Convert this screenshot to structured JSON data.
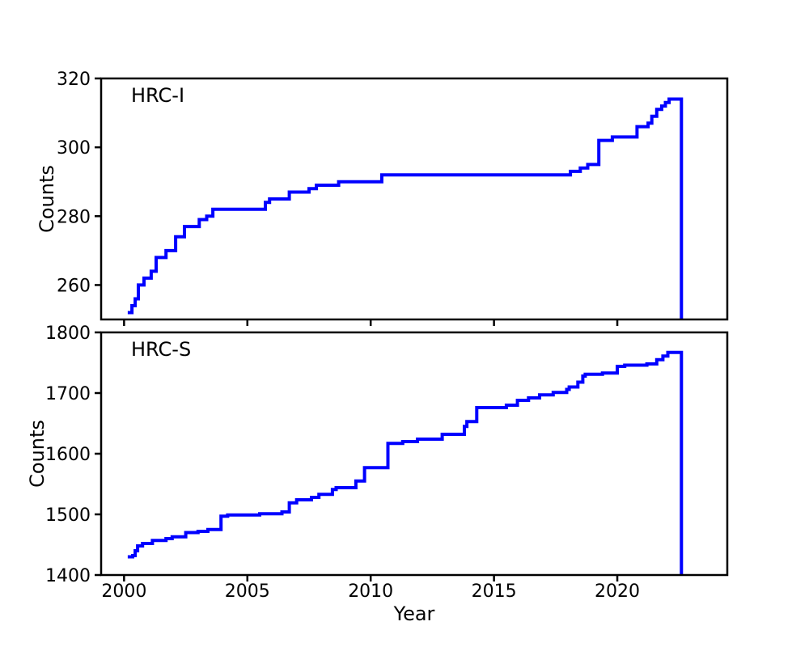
{
  "figure": {
    "background": "#ffffff",
    "axis_color": "#000000",
    "line_color": "#0000ff",
    "xlabel": "Year",
    "ylabel": "Counts"
  },
  "chart_data": [
    {
      "type": "line",
      "title": "HRC-I",
      "xlabel": "",
      "ylabel": "Counts",
      "legend": "none",
      "grid": false,
      "step": "after",
      "line_color": "#0000ff",
      "xlim": [
        1999.07,
        2024.46
      ],
      "ylim": [
        250,
        320
      ],
      "xticks": [
        2000,
        2005,
        2010,
        2015,
        2020
      ],
      "yticks": [
        260,
        280,
        300,
        320
      ],
      "xtick_labels_visible": false,
      "x": [
        2000.15,
        2000.32,
        2000.45,
        2000.58,
        2000.81,
        2001.1,
        2001.3,
        2001.7,
        2002.09,
        2002.45,
        2003.05,
        2003.35,
        2003.6,
        2005.73,
        2005.9,
        2006.7,
        2007.5,
        2007.8,
        2008.7,
        2010.45,
        2018.1,
        2018.5,
        2018.8,
        2019.25,
        2019.8,
        2020.8,
        2021.25,
        2021.4,
        2021.6,
        2021.8,
        2021.95,
        2022.1,
        2022.58,
        2022.6
      ],
      "y": [
        252,
        254,
        256,
        260,
        262,
        264,
        268,
        270,
        274,
        277,
        279,
        280,
        282,
        284,
        285,
        287,
        288,
        289,
        290,
        292,
        293,
        294,
        295,
        302,
        303,
        306,
        307,
        309,
        311,
        312,
        313,
        314,
        314,
        250
      ]
    },
    {
      "type": "line",
      "title": "HRC-S",
      "xlabel": "Year",
      "ylabel": "Counts",
      "legend": "none",
      "grid": false,
      "step": "after",
      "line_color": "#0000ff",
      "xlim": [
        1999.07,
        2024.46
      ],
      "ylim": [
        1400,
        1800
      ],
      "xticks": [
        2000,
        2005,
        2010,
        2015,
        2020
      ],
      "yticks": [
        1400,
        1500,
        1600,
        1700,
        1800
      ],
      "xtick_labels_visible": true,
      "x": [
        2000.15,
        2000.35,
        2000.45,
        2000.55,
        2000.75,
        2001.15,
        2001.7,
        2001.95,
        2002.5,
        2003.0,
        2003.4,
        2003.93,
        2004.2,
        2005.5,
        2006.4,
        2006.7,
        2007.0,
        2007.6,
        2007.9,
        2008.45,
        2008.6,
        2009.4,
        2009.75,
        2010.7,
        2011.3,
        2011.9,
        2012.9,
        2013.8,
        2013.9,
        2014.3,
        2015.5,
        2015.95,
        2016.4,
        2016.85,
        2017.4,
        2017.95,
        2018.05,
        2018.4,
        2018.6,
        2018.7,
        2019.4,
        2020.0,
        2020.3,
        2021.2,
        2021.6,
        2021.85,
        2022.05,
        2022.58,
        2022.6
      ],
      "y": [
        1430,
        1432,
        1440,
        1448,
        1452,
        1457,
        1460,
        1463,
        1470,
        1472,
        1475,
        1497,
        1499,
        1501,
        1504,
        1519,
        1524,
        1528,
        1533,
        1541,
        1544,
        1555,
        1577,
        1617,
        1620,
        1624,
        1632,
        1645,
        1653,
        1676,
        1680,
        1688,
        1692,
        1697,
        1701,
        1706,
        1710,
        1718,
        1728,
        1731,
        1733,
        1744,
        1746,
        1748,
        1755,
        1761,
        1767,
        1767,
        1400
      ]
    }
  ]
}
